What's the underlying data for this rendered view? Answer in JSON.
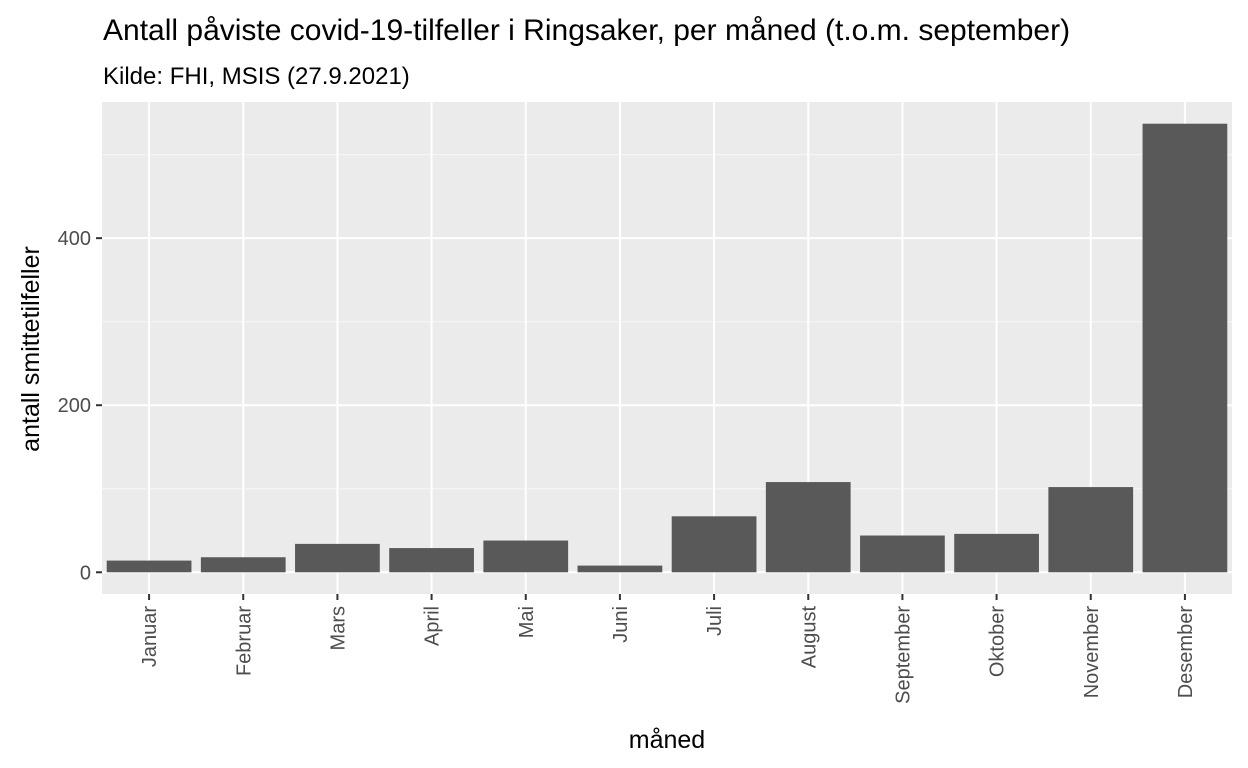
{
  "chart_data": {
    "type": "bar",
    "title": "Antall påviste covid-19-tilfeller i Ringsaker, per måned (t.o.m. september)",
    "subtitle": "Kilde: FHI, MSIS (27.9.2021)",
    "xlabel": "måned",
    "ylabel": "antall smittetilfeller",
    "categories": [
      "Januar",
      "Februar",
      "Mars",
      "April",
      "Mai",
      "Juni",
      "Juli",
      "August",
      "September",
      "Oktober",
      "November",
      "Desember"
    ],
    "values": [
      14,
      18,
      34,
      29,
      38,
      8,
      67,
      108,
      44,
      46,
      102,
      537
    ],
    "ylim": [
      -26,
      563
    ],
    "yticks": [
      0,
      200,
      400
    ],
    "ytick_labels": [
      "0",
      "200",
      "400"
    ],
    "grid": true,
    "legend": "none",
    "colors": {
      "bar": "#595959",
      "panel": "#ebebeb",
      "grid_major": "#ffffff",
      "grid_minor": "#f5f5f5",
      "tick": "#333333",
      "tick_label": "#4d4d4d"
    }
  }
}
